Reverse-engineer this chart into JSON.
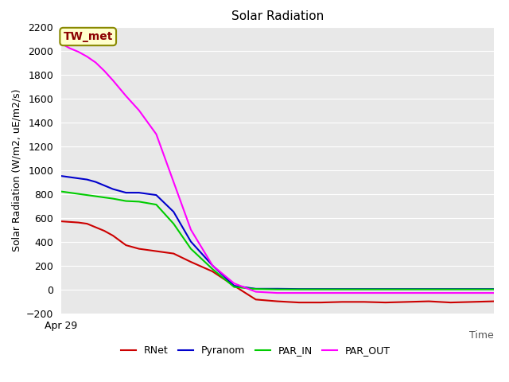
{
  "title": "Solar Radiation",
  "ylabel": "Solar Radiation (W/m2, uE/m2/s)",
  "xlabel": "Time",
  "xlim": [
    0,
    100
  ],
  "ylim": [
    -200,
    2200
  ],
  "yticks": [
    -200,
    0,
    200,
    400,
    600,
    800,
    1000,
    1200,
    1400,
    1600,
    1800,
    2000,
    2200
  ],
  "xticklabel": "Apr 29",
  "annotation": "TW_met",
  "bg_color": "#e8e8e8",
  "series": {
    "RNet": {
      "color": "#cc0000",
      "x": [
        0,
        2,
        4,
        6,
        8,
        10,
        12,
        15,
        18,
        22,
        26,
        30,
        35,
        40,
        45,
        50,
        55,
        60,
        65,
        70,
        75,
        80,
        85,
        90,
        95,
        100
      ],
      "y": [
        570,
        565,
        560,
        550,
        520,
        490,
        450,
        370,
        340,
        320,
        300,
        230,
        150,
        30,
        -85,
        -100,
        -110,
        -110,
        -105,
        -105,
        -110,
        -105,
        -100,
        -110,
        -105,
        -100
      ]
    },
    "Pyranom": {
      "color": "#0000cc",
      "x": [
        0,
        2,
        4,
        6,
        8,
        10,
        12,
        15,
        18,
        22,
        26,
        30,
        35,
        40,
        45,
        50,
        55,
        60,
        65,
        70,
        75,
        80,
        85,
        90,
        95,
        100
      ],
      "y": [
        950,
        940,
        930,
        920,
        900,
        870,
        840,
        810,
        810,
        790,
        650,
        400,
        200,
        30,
        5,
        5,
        3,
        3,
        3,
        3,
        3,
        3,
        3,
        3,
        3,
        3
      ]
    },
    "PAR_IN": {
      "color": "#00cc00",
      "x": [
        0,
        2,
        4,
        6,
        8,
        10,
        12,
        15,
        18,
        22,
        26,
        30,
        35,
        40,
        45,
        50,
        55,
        60,
        65,
        70,
        75,
        80,
        85,
        90,
        95,
        100
      ],
      "y": [
        820,
        810,
        800,
        790,
        780,
        770,
        760,
        740,
        735,
        710,
        550,
        340,
        170,
        20,
        3,
        0,
        0,
        0,
        0,
        0,
        0,
        0,
        0,
        0,
        0,
        0
      ]
    },
    "PAR_OUT": {
      "color": "#ff00ff",
      "x": [
        0,
        2,
        4,
        6,
        8,
        10,
        12,
        15,
        18,
        22,
        26,
        30,
        35,
        40,
        45,
        50,
        55,
        60,
        65,
        70,
        75,
        80,
        85,
        90,
        95,
        100
      ],
      "y": [
        2060,
        2020,
        1990,
        1950,
        1900,
        1830,
        1750,
        1620,
        1500,
        1300,
        900,
        500,
        200,
        50,
        -20,
        -30,
        -30,
        -30,
        -30,
        -30,
        -30,
        -30,
        -30,
        -30,
        -30,
        -30
      ]
    }
  }
}
